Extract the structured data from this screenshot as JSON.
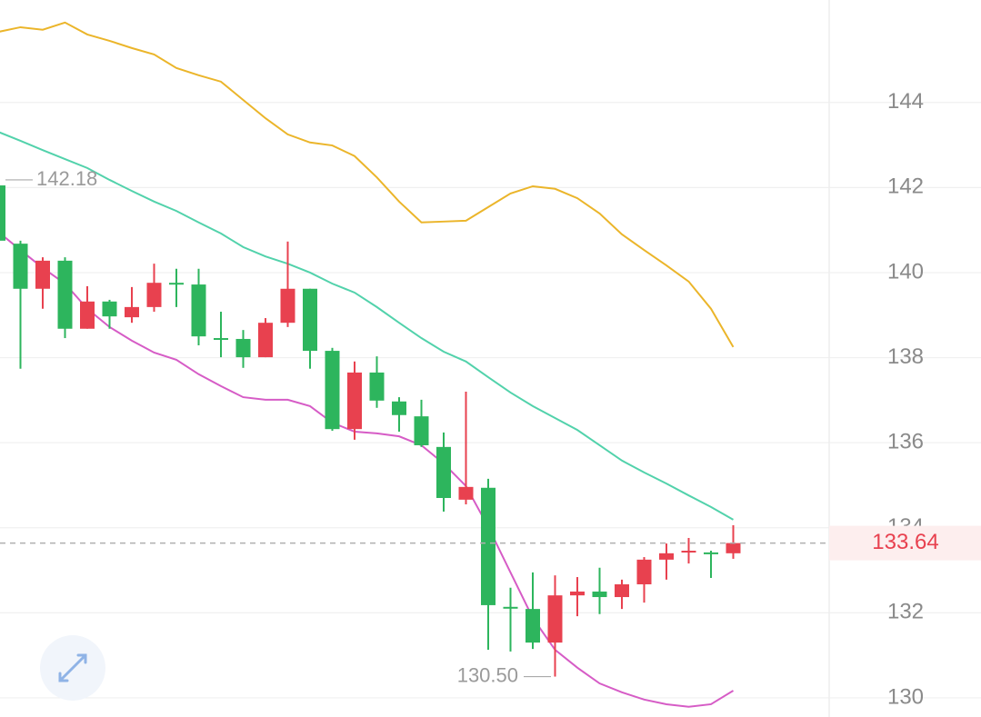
{
  "chart_data": {
    "type": "candlestick",
    "open": [
      142.05,
      140.68,
      139.62,
      140.28,
      138.68,
      139.32,
      138.95,
      139.19,
      139.76,
      139.72,
      138.46,
      138.44,
      138.01,
      138.82,
      139.62,
      138.16,
      136.32,
      137.65,
      136.97,
      136.62,
      135.9,
      134.66,
      134.94,
      132.14,
      132.09,
      131.3,
      132.41,
      132.5,
      132.37,
      132.67,
      133.25,
      133.44,
      133.42,
      133.4
    ],
    "high": [
      142.18,
      140.75,
      140.36,
      140.36,
      139.68,
      139.36,
      139.66,
      140.21,
      140.09,
      140.09,
      139.08,
      138.65,
      138.93,
      140.73,
      139.62,
      138.23,
      137.91,
      138.03,
      137.07,
      137.01,
      136.24,
      137.2,
      135.15,
      132.59,
      132.95,
      132.88,
      132.84,
      133.06,
      132.78,
      133.31,
      133.63,
      133.76,
      133.46,
      134.06
    ],
    "low": [
      140.7,
      137.74,
      139.15,
      138.46,
      138.68,
      138.68,
      138.82,
      139.08,
      139.19,
      138.29,
      138.01,
      137.76,
      138.01,
      138.72,
      137.74,
      136.28,
      136.07,
      136.82,
      136.26,
      135.9,
      134.38,
      134.55,
      131.13,
      131.09,
      131.15,
      130.5,
      131.92,
      131.97,
      132.09,
      132.24,
      132.78,
      133.16,
      132.82,
      133.27
    ],
    "close": [
      140.75,
      139.62,
      140.28,
      138.68,
      139.32,
      138.97,
      139.19,
      139.76,
      139.74,
      138.5,
      138.44,
      138.01,
      138.82,
      139.62,
      138.16,
      136.32,
      137.65,
      136.99,
      136.65,
      135.94,
      134.7,
      134.96,
      132.18,
      132.12,
      131.3,
      132.41,
      132.5,
      132.37,
      132.67,
      133.25,
      133.4,
      133.46,
      133.4,
      133.64
    ],
    "up_color": "#e8414f",
    "down_color": "#2db55d",
    "series": [
      {
        "color": "#ebb52a",
        "values": [
          145.66,
          145.77,
          145.71,
          145.88,
          145.6,
          145.45,
          145.28,
          145.13,
          144.81,
          144.64,
          144.49,
          144.06,
          143.63,
          143.25,
          143.06,
          142.99,
          142.74,
          142.24,
          141.67,
          141.18,
          141.2,
          141.22,
          141.54,
          141.86,
          142.03,
          141.97,
          141.75,
          141.39,
          140.9,
          140.53,
          140.17,
          139.79,
          139.15,
          138.25
        ]
      },
      {
        "color": "#52d2ab",
        "values": [
          143.31,
          143.1,
          142.88,
          142.67,
          142.46,
          142.18,
          141.92,
          141.67,
          141.45,
          141.18,
          140.92,
          140.6,
          140.38,
          140.21,
          140.0,
          139.74,
          139.53,
          139.19,
          138.82,
          138.46,
          138.14,
          137.91,
          137.54,
          137.18,
          136.86,
          136.58,
          136.3,
          135.94,
          135.58,
          135.3,
          135.04,
          134.76,
          134.49,
          134.19
        ]
      },
      {
        "color": "#d65cc6",
        "values": [
          140.96,
          140.53,
          140.11,
          139.74,
          139.15,
          138.72,
          138.4,
          138.12,
          137.95,
          137.61,
          137.33,
          137.07,
          137.01,
          137.01,
          136.86,
          136.47,
          136.26,
          136.22,
          136.15,
          135.94,
          135.51,
          134.98,
          134.02,
          132.95,
          131.88,
          131.13,
          130.71,
          130.34,
          130.13,
          129.96,
          129.85,
          129.79,
          129.85,
          130.17
        ]
      }
    ],
    "ylim": [
      129.55,
      146.41
    ],
    "yticks": [
      130,
      132,
      134,
      136,
      138,
      140,
      142,
      144
    ],
    "grid": true,
    "last_price": 133.64,
    "max_label": 142.18,
    "min_label": {
      "value": 130.5,
      "label": "130.50"
    }
  }
}
